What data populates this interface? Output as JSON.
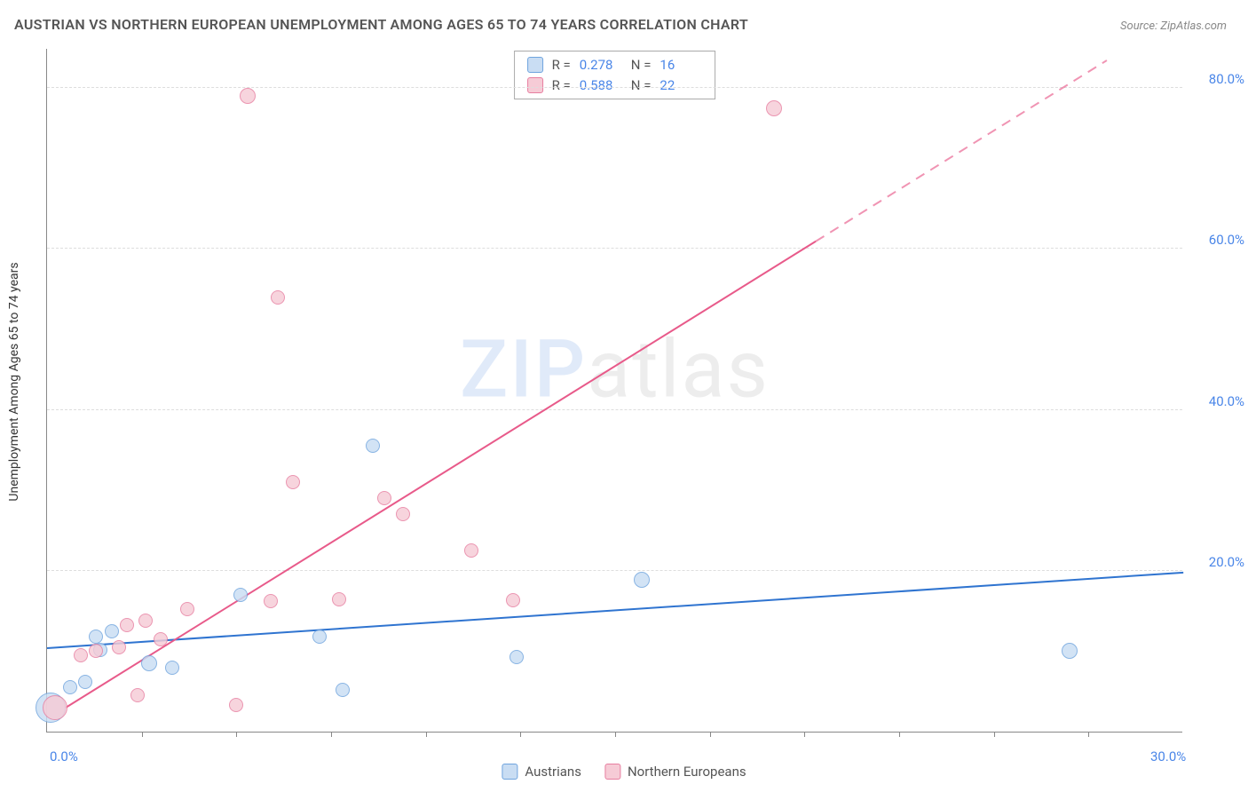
{
  "title": "AUSTRIAN VS NORTHERN EUROPEAN UNEMPLOYMENT AMONG AGES 65 TO 74 YEARS CORRELATION CHART",
  "source_label": "Source: ZipAtlas.com",
  "y_axis_label": "Unemployment Among Ages 65 to 74 years",
  "watermark": {
    "part1": "ZIP",
    "part2": "atlas"
  },
  "chart": {
    "type": "scatter",
    "xlim": [
      0,
      30
    ],
    "ylim": [
      0,
      85
    ],
    "x_ticks_minor": [
      2.5,
      5,
      7.5,
      10,
      12.5,
      15,
      17.5,
      20,
      22.5,
      25,
      27.5
    ],
    "x_tick_labels": [
      {
        "x": 0,
        "label": "0.0%"
      },
      {
        "x": 30,
        "label": "30.0%"
      }
    ],
    "y_grid": [
      {
        "y": 20,
        "label": "20.0%"
      },
      {
        "y": 40,
        "label": "40.0%"
      },
      {
        "y": 60,
        "label": "60.0%"
      },
      {
        "y": 80,
        "label": "80.0%"
      }
    ],
    "grid_color": "#dddddd",
    "axis_color": "#888888",
    "tick_label_color": "#4a86e8",
    "series": [
      {
        "name": "Austrians",
        "fill": "#c9ddf3",
        "stroke": "#6fa4de",
        "r_label": "0.278",
        "n_label": "16",
        "trend": {
          "x1": 0,
          "y1": 10.4,
          "x2": 30,
          "y2": 19.8,
          "dash_from_x": null,
          "color": "#2f74d0"
        },
        "points": [
          {
            "x": 0.1,
            "y": 3.0,
            "r": 17
          },
          {
            "x": 0.6,
            "y": 5.5,
            "r": 8
          },
          {
            "x": 1.0,
            "y": 6.2,
            "r": 8
          },
          {
            "x": 1.3,
            "y": 11.8,
            "r": 8
          },
          {
            "x": 1.4,
            "y": 10.2,
            "r": 8
          },
          {
            "x": 1.7,
            "y": 12.5,
            "r": 8
          },
          {
            "x": 2.7,
            "y": 8.5,
            "r": 9
          },
          {
            "x": 3.3,
            "y": 8.0,
            "r": 8
          },
          {
            "x": 5.1,
            "y": 17.0,
            "r": 8
          },
          {
            "x": 7.2,
            "y": 11.8,
            "r": 8
          },
          {
            "x": 7.8,
            "y": 5.2,
            "r": 8
          },
          {
            "x": 8.6,
            "y": 35.5,
            "r": 8
          },
          {
            "x": 12.4,
            "y": 9.3,
            "r": 8
          },
          {
            "x": 15.7,
            "y": 18.9,
            "r": 9
          },
          {
            "x": 27.0,
            "y": 10.1,
            "r": 9
          }
        ]
      },
      {
        "name": "Northern Europeans",
        "fill": "#f6cbd6",
        "stroke": "#e77ea0",
        "r_label": "0.588",
        "n_label": "22",
        "trend": {
          "x1": 0.5,
          "y1": 3.0,
          "x2": 28,
          "y2": 83.5,
          "dash_from_x": 20.3,
          "color": "#e85a8a"
        },
        "points": [
          {
            "x": 0.2,
            "y": 3.0,
            "r": 14
          },
          {
            "x": 0.9,
            "y": 9.5,
            "r": 8
          },
          {
            "x": 1.3,
            "y": 10.0,
            "r": 8
          },
          {
            "x": 1.9,
            "y": 10.5,
            "r": 8
          },
          {
            "x": 2.1,
            "y": 13.2,
            "r": 8
          },
          {
            "x": 2.4,
            "y": 4.5,
            "r": 8
          },
          {
            "x": 2.6,
            "y": 13.8,
            "r": 8
          },
          {
            "x": 3.0,
            "y": 11.5,
            "r": 8
          },
          {
            "x": 3.7,
            "y": 15.2,
            "r": 8
          },
          {
            "x": 5.0,
            "y": 3.3,
            "r": 8
          },
          {
            "x": 5.3,
            "y": 79.0,
            "r": 9
          },
          {
            "x": 5.9,
            "y": 16.2,
            "r": 8
          },
          {
            "x": 6.1,
            "y": 54.0,
            "r": 8
          },
          {
            "x": 6.5,
            "y": 31.0,
            "r": 8
          },
          {
            "x": 7.7,
            "y": 16.5,
            "r": 8
          },
          {
            "x": 8.9,
            "y": 29.0,
            "r": 8
          },
          {
            "x": 9.4,
            "y": 27.0,
            "r": 8
          },
          {
            "x": 11.2,
            "y": 22.5,
            "r": 8
          },
          {
            "x": 12.3,
            "y": 16.3,
            "r": 8
          },
          {
            "x": 19.2,
            "y": 77.5,
            "r": 9
          }
        ]
      }
    ]
  },
  "legend_bottom": [
    {
      "swatch_series": 0,
      "label": "Austrians"
    },
    {
      "swatch_series": 1,
      "label": "Northern Europeans"
    }
  ]
}
